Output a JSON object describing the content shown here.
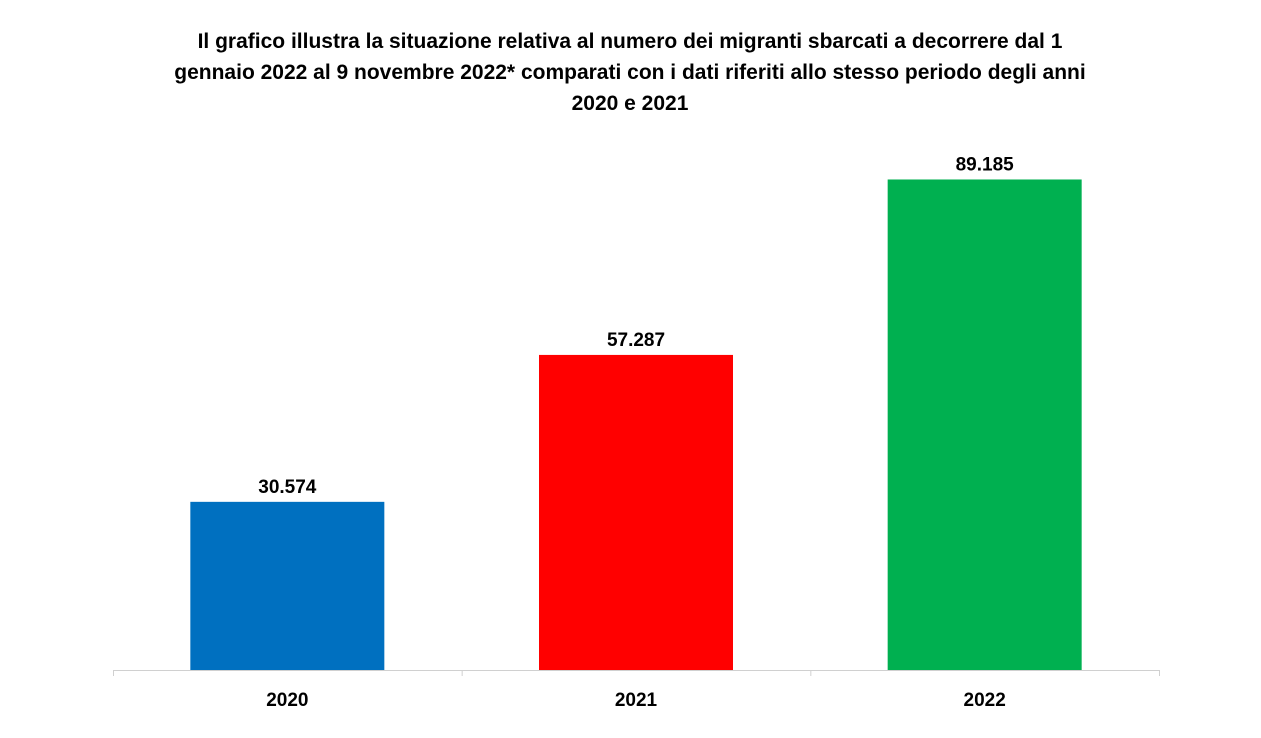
{
  "chart_data": {
    "type": "bar",
    "title_lines": [
      "Il grafico illustra la situazione relativa al numero dei migranti sbarcati a decorrere dal 1",
      "gennaio 2022 al 9 novembre 2022* comparati con i dati riferiti allo stesso periodo degli anni",
      "2020 e 2021"
    ],
    "categories": [
      "2020",
      "2021",
      "2022"
    ],
    "values": [
      30574,
      57287,
      89185
    ],
    "value_labels": [
      "30.574",
      "57.287",
      "89.185"
    ],
    "colors": [
      "#0070C0",
      "#FF0000",
      "#00B050"
    ],
    "xlabel": "",
    "ylabel": "",
    "ylim": [
      0,
      100000
    ],
    "grid": false,
    "legend": "none",
    "y_axis_visible": false
  }
}
